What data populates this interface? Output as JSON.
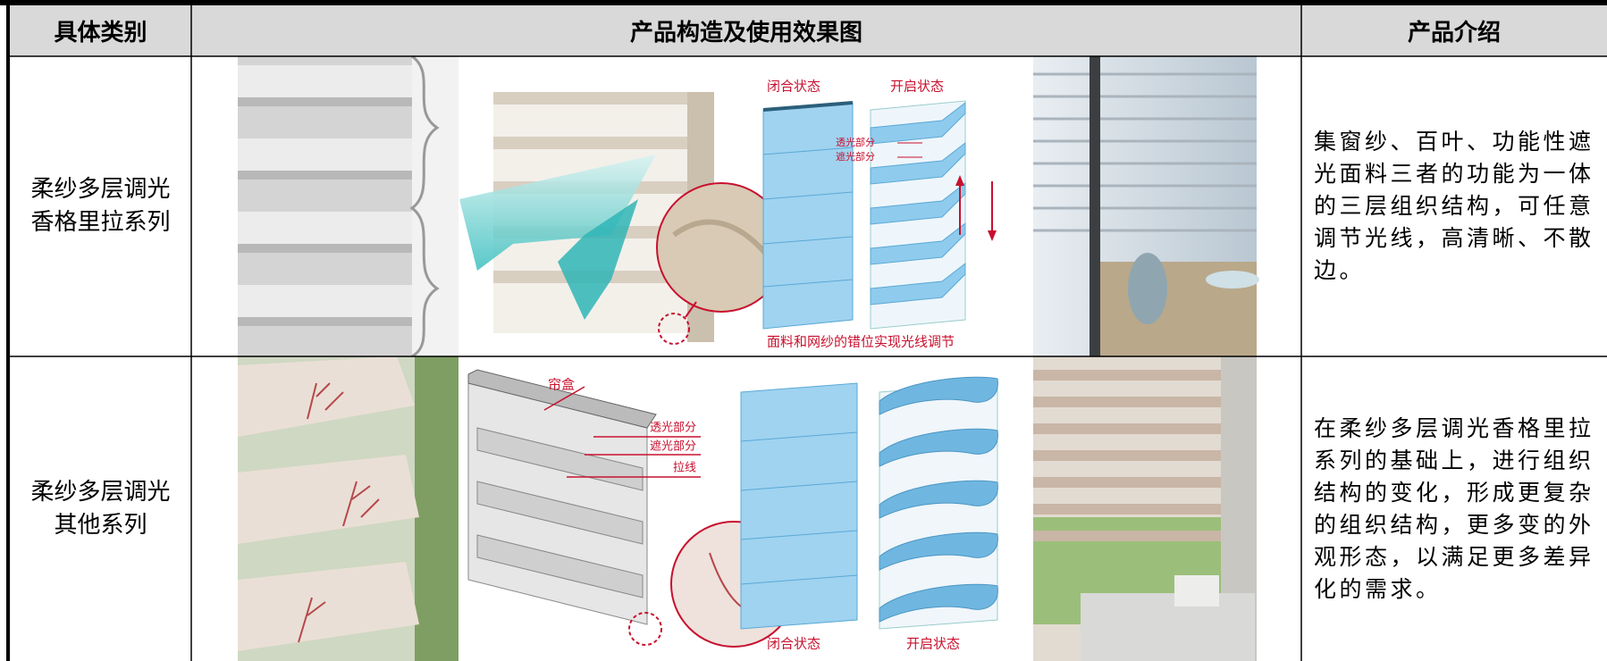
{
  "table": {
    "header": [
      "具体类别",
      "产品构造及使用效果图",
      "产品介绍"
    ],
    "rows": [
      {
        "category": [
          "柔纱多层调光",
          "香格里拉系列"
        ],
        "figure_labels": [
          "闭合状态",
          "开启状态",
          "透光部分",
          "遮光部分",
          "面料和网纱的错位实现光线调节"
        ],
        "description": "集窗纱、百叶、功能性遮光面料三者的功能为一体的三层组织结构，可任意调节光线，高清晰、不散边。"
      },
      {
        "category": [
          "柔纱多层调光",
          "其他系列"
        ],
        "figure_labels": [
          "帘盒",
          "透光部分",
          "遮光部分",
          "拉线",
          "闭合状态",
          "开启状态"
        ],
        "description": "在柔纱多层调光香格里拉系列的基础上，进行组织结构的变化，形成更复杂的组织结构，更多变的外观形态，以满足更多差异化的需求。"
      }
    ]
  }
}
